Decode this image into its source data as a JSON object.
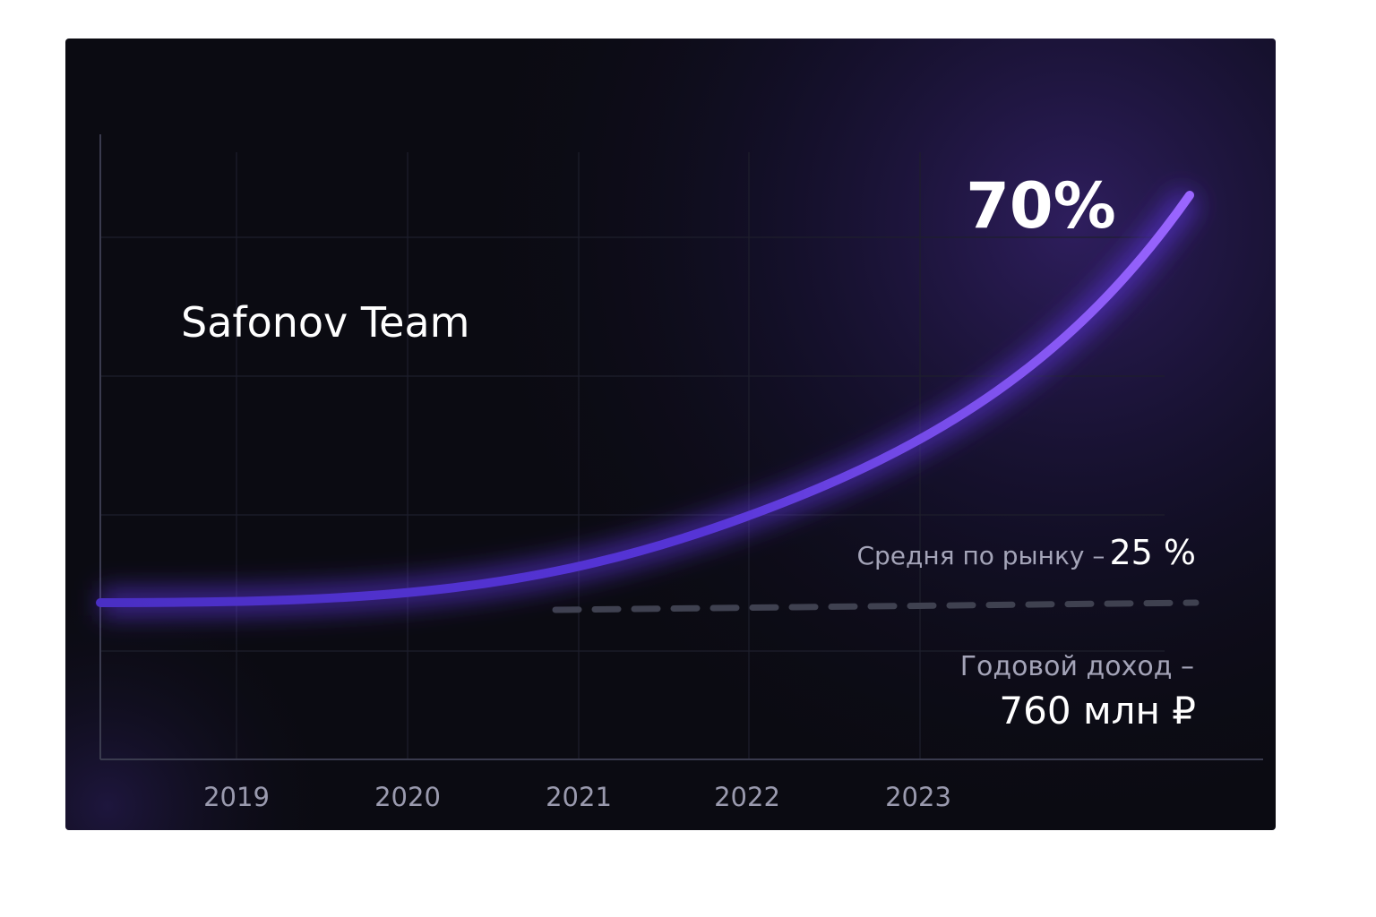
{
  "title": "Safonov Team",
  "highlight": "70%",
  "market": {
    "label": "Средня по рынку –",
    "value": "25 %"
  },
  "income": {
    "label": "Годовой доход –",
    "value": "760 млн ₽"
  },
  "years": [
    "2019",
    "2020",
    "2021",
    "2022",
    "2023"
  ]
}
